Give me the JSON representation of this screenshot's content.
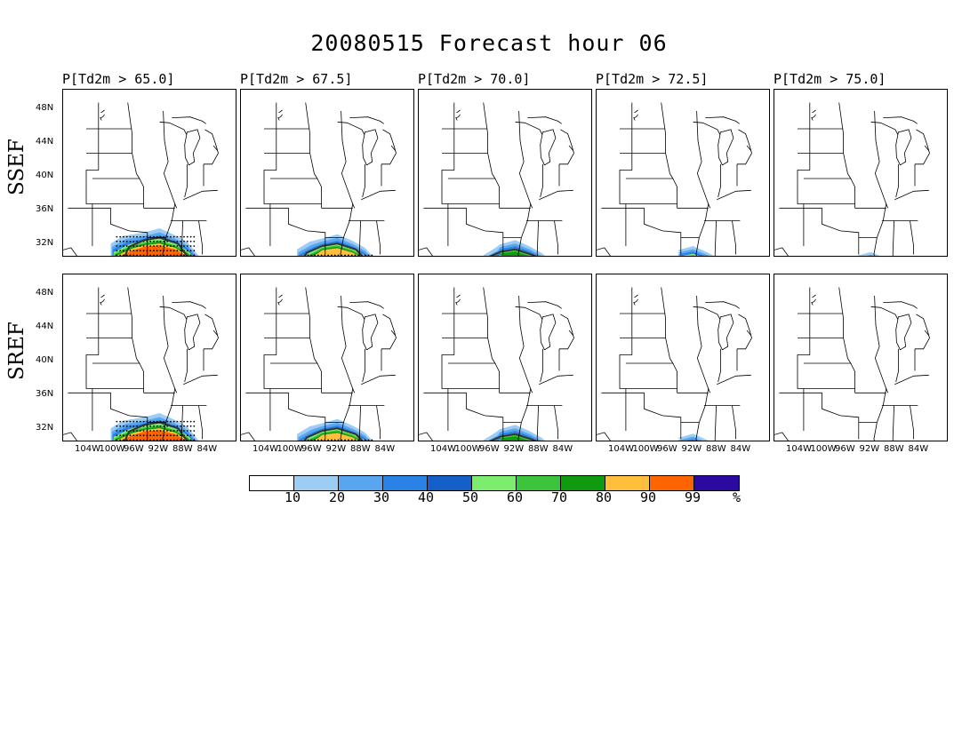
{
  "title": "20080515 Forecast hour 06",
  "columns": [
    {
      "label": "P[Td2m > 65.0]"
    },
    {
      "label": "P[Td2m > 67.5]"
    },
    {
      "label": "P[Td2m > 70.0]"
    },
    {
      "label": "P[Td2m > 72.5]"
    },
    {
      "label": "P[Td2m > 75.0]"
    }
  ],
  "rows": [
    {
      "label": "SSEF"
    },
    {
      "label": "SREF"
    }
  ],
  "lat_ticks": [
    "48N",
    "44N",
    "40N",
    "36N",
    "32N"
  ],
  "lon_ticks": [
    "104W",
    "100W",
    "96W",
    "92W",
    "88W",
    "84W"
  ],
  "colorbar": {
    "labels": [
      "10",
      "20",
      "30",
      "40",
      "50",
      "60",
      "70",
      "80",
      "90",
      "99",
      "%"
    ],
    "colors": [
      "#ffffff",
      "#9ccdf5",
      "#5aa5f0",
      "#2b82e6",
      "#1560c8",
      "#7ced6e",
      "#3cc53c",
      "#109a10",
      "#ffbe3c",
      "#ff6400",
      "#2c0aa0"
    ]
  },
  "probability_extent": [
    [
      {
        "level": 5
      },
      {
        "level": 4
      },
      {
        "level": 3
      },
      {
        "level": 2
      },
      {
        "level": 1
      }
    ],
    [
      {
        "level": 5
      },
      {
        "level": 4
      },
      {
        "level": 3
      },
      {
        "level": 1.5
      },
      {
        "level": 0
      }
    ]
  ]
}
